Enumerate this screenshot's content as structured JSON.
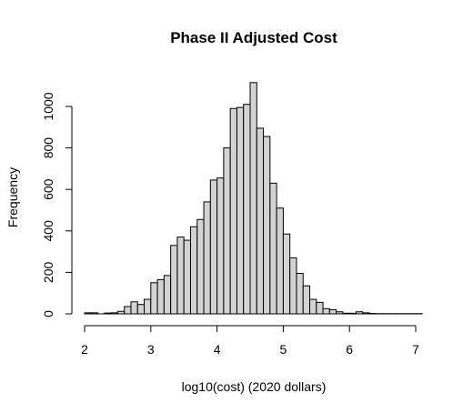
{
  "chart_data": {
    "type": "bar",
    "title": "Phase II Adjusted Cost",
    "xlabel": "log10(cost) (2020 dollars)",
    "ylabel": "Frequency",
    "bin_width": 0.1,
    "bins_start": [
      2.0,
      2.1,
      2.2,
      2.3,
      2.4,
      2.5,
      2.6,
      2.7,
      2.8,
      2.9,
      3.0,
      3.1,
      3.2,
      3.3,
      3.4,
      3.5,
      3.6,
      3.7,
      3.8,
      3.9,
      4.0,
      4.1,
      4.2,
      4.3,
      4.4,
      4.5,
      4.6,
      4.7,
      4.8,
      4.9,
      5.0,
      5.1,
      5.2,
      5.3,
      5.4,
      5.5,
      5.6,
      5.7,
      5.8,
      5.9,
      6.0,
      6.1,
      6.2,
      6.3,
      6.4,
      6.5,
      6.6,
      6.7,
      6.8,
      6.9,
      7.0
    ],
    "values": [
      5,
      5,
      0,
      4,
      5,
      12,
      35,
      58,
      45,
      70,
      150,
      165,
      185,
      330,
      370,
      355,
      420,
      455,
      540,
      645,
      655,
      800,
      990,
      995,
      1010,
      1115,
      895,
      855,
      630,
      510,
      385,
      270,
      195,
      135,
      70,
      55,
      25,
      20,
      10,
      3,
      3,
      10,
      5,
      2,
      1,
      1,
      1,
      1,
      1,
      1,
      1
    ],
    "x_ticks": [
      "2",
      "3",
      "4",
      "5",
      "6",
      "7"
    ],
    "x_tick_values": [
      2,
      3,
      4,
      5,
      6,
      7
    ],
    "y_ticks": [
      "0",
      "200",
      "400",
      "600",
      "800",
      "1000"
    ],
    "y_tick_values": [
      0,
      200,
      400,
      600,
      800,
      1000
    ],
    "xlim": [
      2,
      7.1
    ],
    "ylim": [
      0,
      1115
    ],
    "grid": false,
    "colors": {
      "bar_fill": "#d3d3d3",
      "bar_stroke": "#000000"
    }
  }
}
